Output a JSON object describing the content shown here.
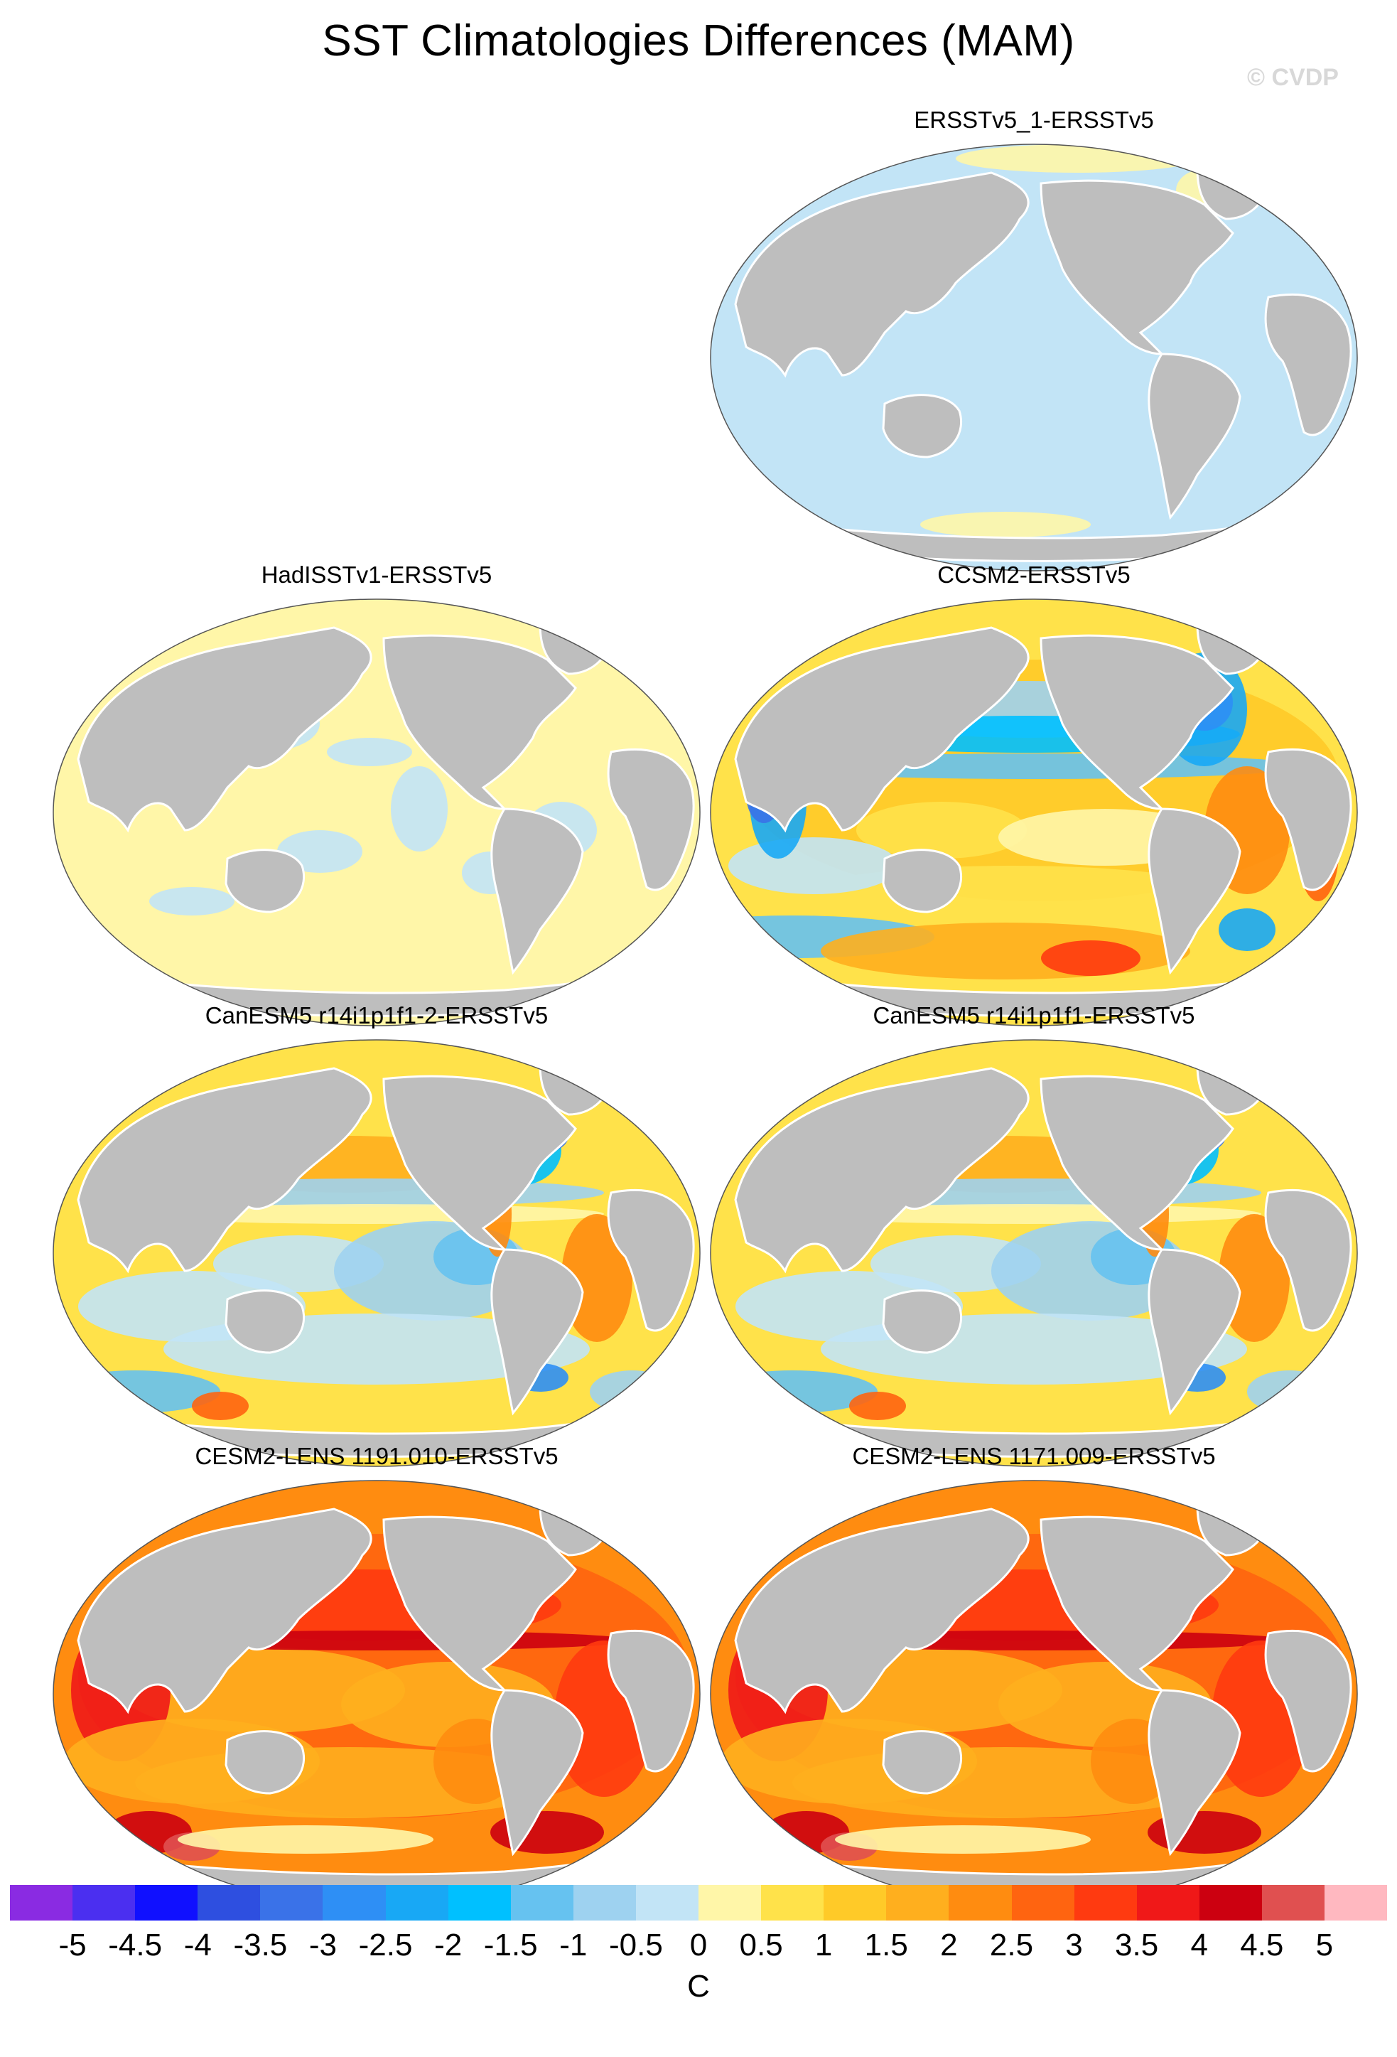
{
  "title": "SST Climatologies Differences (MAM)",
  "watermark": "© CVDP",
  "colors": {
    "land": "#bebebe",
    "palette": [
      "#8a2be2",
      "#4b2ff0",
      "#1010ff",
      "#2e4fe0",
      "#3a72e8",
      "#2e8ff5",
      "#18a8f5",
      "#00c0ff",
      "#66c2f0",
      "#9ed2f0",
      "#c2e4f6",
      "#fff6a8",
      "#ffe24a",
      "#ffca28",
      "#ffaf1e",
      "#ff8c10",
      "#ff6410",
      "#ff3a10",
      "#f01818",
      "#cc0010",
      "#e05050",
      "#ffb8c0"
    ]
  },
  "colorbar": {
    "labels": [
      "-5",
      "-4.5",
      "-4",
      "-3.5",
      "-3",
      "-2.5",
      "-2",
      "-1.5",
      "-1",
      "-0.5",
      "0",
      "0.5",
      "1",
      "1.5",
      "2",
      "2.5",
      "3",
      "3.5",
      "4",
      "4.5",
      "5"
    ],
    "unit": "C"
  },
  "panels": [
    {
      "title": "ERSSTv5_1-ERSSTv5",
      "style": "flat"
    },
    {
      "title": "HadISSTv1-ERSSTv5",
      "style": "hadisst"
    },
    {
      "title": "CCSM2-ERSSTv5",
      "style": "ccsm"
    },
    {
      "title": "CanESM5 r14i1p1f1-2-ERSSTv5",
      "style": "canesm"
    },
    {
      "title": "CanESM5 r14i1p1f1-ERSSTv5",
      "style": "canesm"
    },
    {
      "title": "CESM2-LENS 1191.010-ERSSTv5",
      "style": "cesm"
    },
    {
      "title": "CESM2-LENS 1171.009-ERSSTv5",
      "style": "cesm"
    }
  ]
}
